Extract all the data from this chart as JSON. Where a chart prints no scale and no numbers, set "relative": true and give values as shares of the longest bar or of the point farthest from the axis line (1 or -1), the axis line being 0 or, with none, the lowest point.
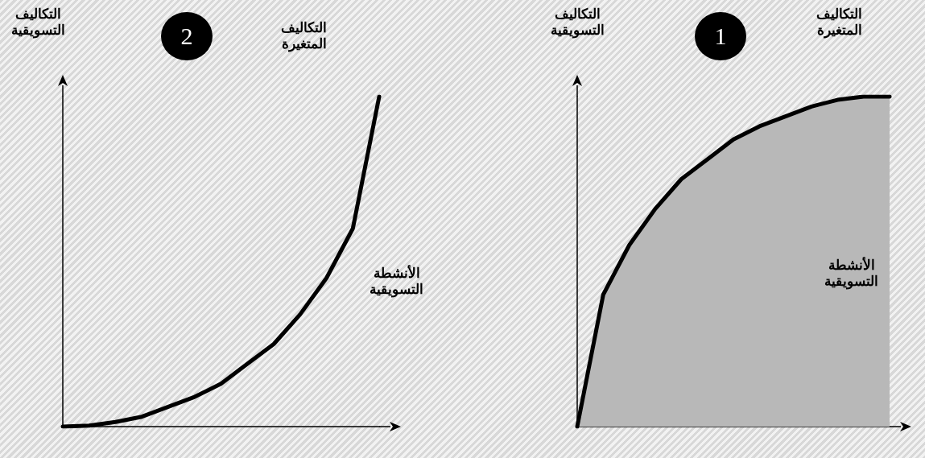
{
  "chart_data": [
    {
      "type": "area",
      "relative": true,
      "ylabel": "التكاليف التسويقية",
      "xlabel": "الأنشطة التسويقية",
      "annotations": [
        "1",
        "التكاليف المتغيرة"
      ],
      "categories": [
        null,
        null,
        null,
        null,
        null,
        null,
        null,
        null,
        null,
        null,
        null,
        null,
        null
      ],
      "series": [
        {
          "color": "#000000",
          "values": [
            0,
            0.4,
            0.55,
            0.66,
            0.75,
            0.81,
            0.87,
            0.91,
            0.94,
            0.97,
            0.99,
            1,
            1
          ]
        }
      ],
      "marker": "none"
    },
    {
      "type": "line",
      "relative": true,
      "ylabel": "التكاليف التسويقية",
      "xlabel": "الأنشطة التسويقية",
      "annotations": [
        "2",
        "التكاليف المتغيرة"
      ],
      "categories": [
        null,
        null,
        null,
        null,
        null,
        null,
        null,
        null,
        null,
        null,
        null,
        null,
        null
      ],
      "series": [
        {
          "color": "#000000",
          "values": [
            0,
            0.003,
            0.014,
            0.03,
            0.06,
            0.09,
            0.13,
            0.19,
            0.25,
            0.34,
            0.45,
            0.6,
            1
          ]
        }
      ],
      "marker": "none"
    }
  ]
}
